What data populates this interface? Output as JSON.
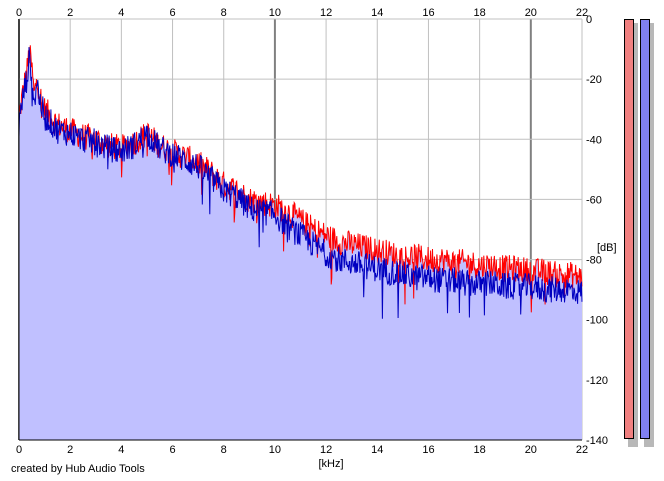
{
  "credit_text": "created by Hub Audio Tools",
  "colors": {
    "fill": "#c0c0ff",
    "left_channel": "#ff0000",
    "right_channel": "#0000c0",
    "meter_left": "#f08080",
    "meter_right": "#8080f0",
    "grid_minor": "#c0c0c0",
    "grid_major": "#808080"
  },
  "meters": {
    "left_level_db": -140,
    "right_level_db": -140
  },
  "chart_data": {
    "type": "line",
    "xlabel": "[kHz]",
    "ylabel": "[dB]",
    "xlim": [
      0,
      22
    ],
    "ylim": [
      -140,
      0
    ],
    "x_ticks": [
      0,
      2,
      4,
      6,
      8,
      10,
      12,
      14,
      16,
      18,
      20,
      22
    ],
    "x_tick_labels": [
      "0",
      "2",
      "4",
      "6",
      "8",
      "10",
      "12",
      "14",
      "16",
      "18",
      "20",
      "22"
    ],
    "y_ticks": [
      0,
      -20,
      -40,
      -60,
      -80,
      -100,
      -120,
      -140
    ],
    "y_tick_labels": [
      "0",
      "-20",
      "-40",
      "-60",
      "-80",
      "-100",
      "-120",
      "-140"
    ],
    "grid": true,
    "major_grid_x": [
      0,
      10,
      20
    ],
    "series": [
      {
        "channel": "left",
        "x": [
          0,
          0.1,
          0.2,
          0.3,
          0.4,
          0.5,
          0.6,
          0.7,
          0.8,
          1,
          1.5,
          2,
          2.5,
          3,
          3.5,
          4,
          4.5,
          5,
          5.5,
          6,
          6.5,
          7,
          7.5,
          8,
          8.5,
          9,
          9.5,
          10,
          10.5,
          11,
          11.5,
          12,
          12.5,
          13,
          13.5,
          14,
          14.5,
          15,
          15.5,
          16,
          16.5,
          17,
          17.5,
          18,
          18.5,
          19,
          19.5,
          20,
          20.5,
          21,
          21.5,
          22
        ],
        "y": [
          -33,
          -27,
          -22,
          -18,
          -11,
          -16,
          -26,
          -18,
          -25,
          -30,
          -35,
          -37,
          -39,
          -40,
          -42,
          -43,
          -41,
          -38,
          -42,
          -44,
          -46,
          -48,
          -51,
          -55,
          -57,
          -60,
          -61,
          -62,
          -64,
          -67,
          -70,
          -72,
          -74,
          -75,
          -76,
          -77,
          -78,
          -79,
          -79,
          -80,
          -80,
          -81,
          -81,
          -82,
          -82,
          -83,
          -83,
          -84,
          -84,
          -85,
          -85,
          -86
        ]
      },
      {
        "channel": "right",
        "x": [
          0,
          0.1,
          0.2,
          0.3,
          0.4,
          0.5,
          0.6,
          0.7,
          0.8,
          1,
          1.5,
          2,
          2.5,
          3,
          3.5,
          4,
          4.5,
          5,
          5.5,
          6,
          6.5,
          7,
          7.5,
          8,
          8.5,
          9,
          9.5,
          10,
          10.5,
          11,
          11.5,
          12,
          12.5,
          13,
          13.5,
          14,
          14.5,
          15,
          15.5,
          16,
          16.5,
          17,
          17.5,
          18,
          18.5,
          19,
          19.5,
          20,
          20.5,
          21,
          21.5,
          22
        ],
        "y": [
          -36,
          -29,
          -24,
          -20,
          -13,
          -18,
          -28,
          -20,
          -27,
          -32,
          -37,
          -38,
          -40,
          -41,
          -43,
          -44,
          -42,
          -38,
          -43,
          -45,
          -47,
          -49,
          -53,
          -57,
          -59,
          -63,
          -64,
          -65,
          -69,
          -72,
          -75,
          -78,
          -80,
          -81,
          -82,
          -83,
          -84,
          -85,
          -86,
          -86,
          -87,
          -87,
          -88,
          -88,
          -88,
          -89,
          -89,
          -89,
          -90,
          -90,
          -90,
          -91
        ]
      }
    ]
  }
}
